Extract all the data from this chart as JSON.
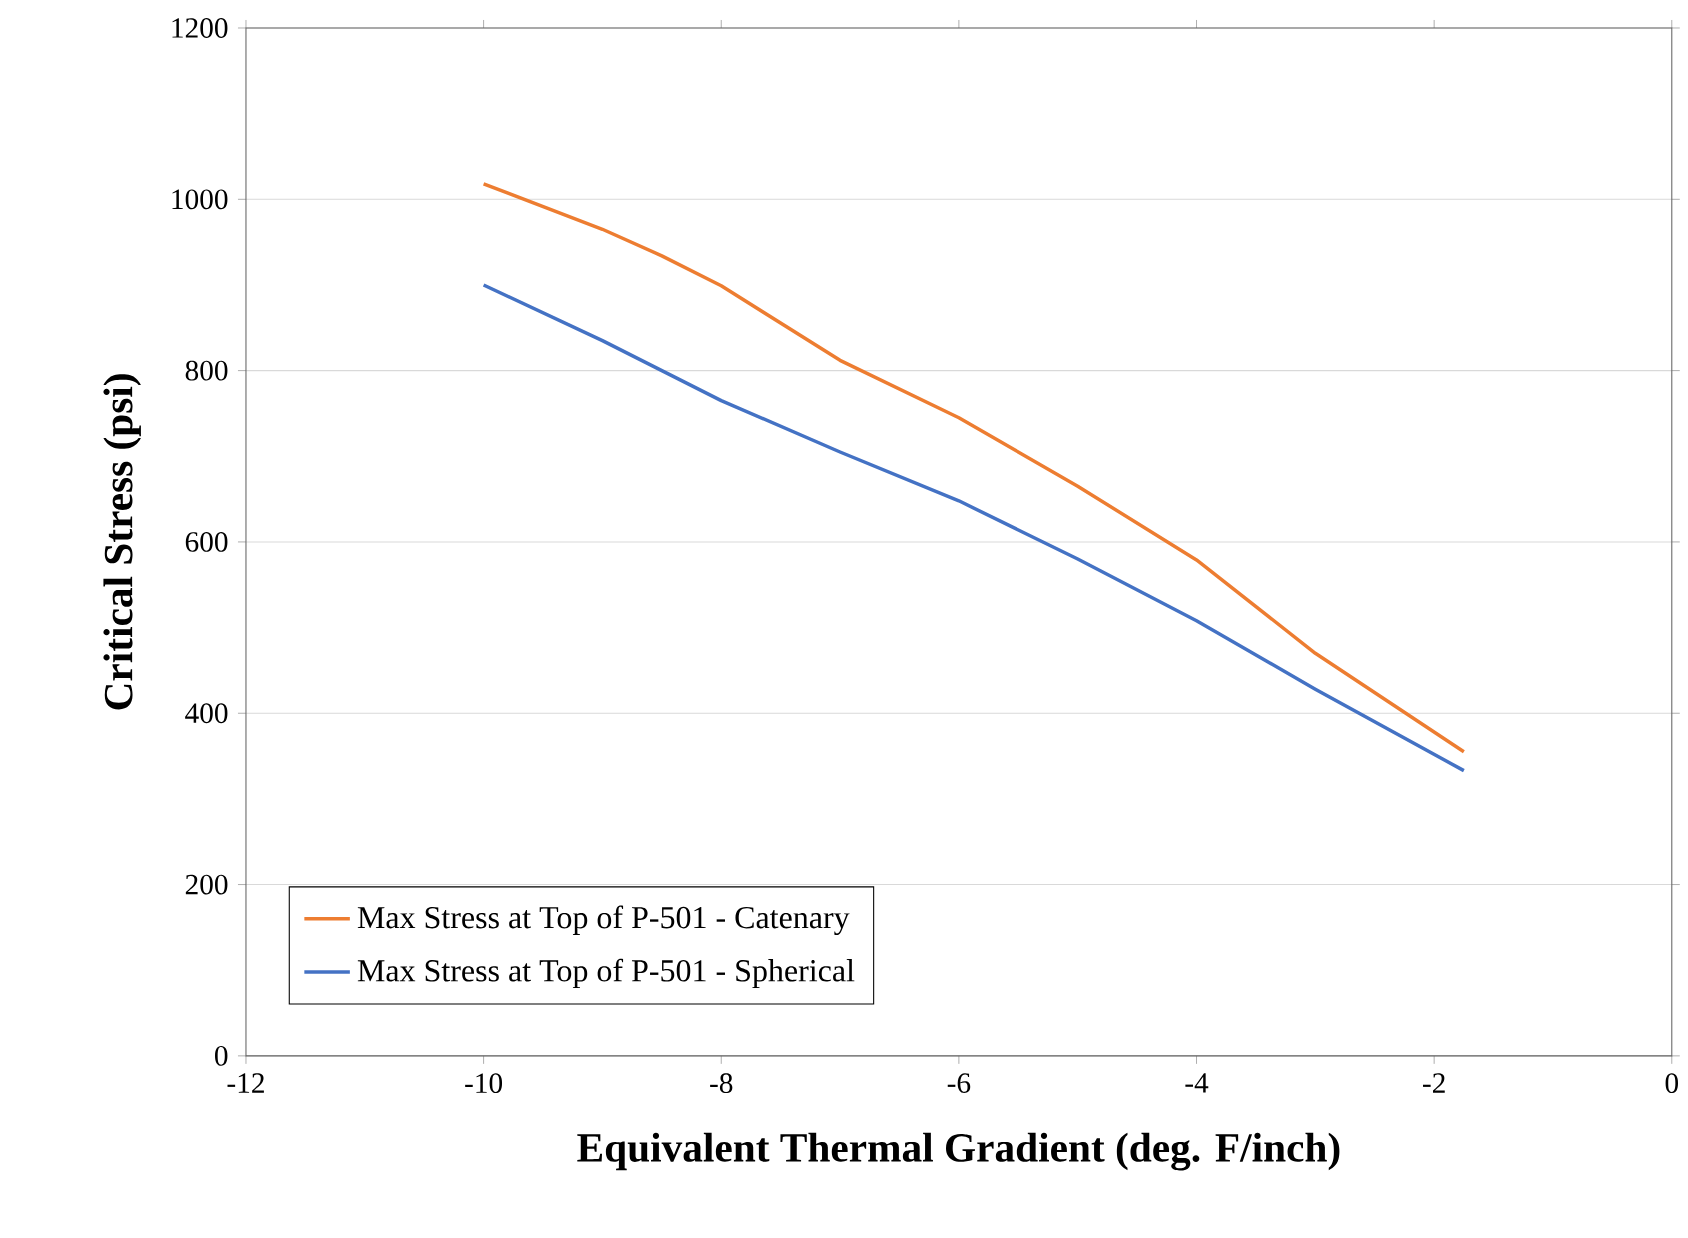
{
  "chart_data": {
    "type": "line",
    "xlabel": "Equivalent Thermal Gradient (deg. F/inch)",
    "ylabel": "Critical Stress (psi)",
    "xlim": [
      -12,
      0
    ],
    "xticks": [
      -12,
      -10,
      -8,
      -6,
      -4,
      -2,
      0
    ],
    "ylim": [
      0,
      1200
    ],
    "yticks": [
      0,
      200,
      400,
      600,
      800,
      1000,
      1200
    ],
    "grid": "y",
    "legend": "bottom left",
    "marker": "none",
    "line_style": "solid",
    "series": [
      {
        "name": "Max Stress at Top of P-501 - Catenary",
        "color": "#ed7d31",
        "x": [
          -10,
          -9,
          -8.5,
          -8,
          -7,
          -6,
          -5,
          -4,
          -3,
          -1.75
        ],
        "values": [
          1018,
          965,
          934,
          899,
          812,
          745,
          665,
          579,
          470,
          355
        ]
      },
      {
        "name": "Max Stress at Top of P-501 - Spherical",
        "color": "#4472c4",
        "x": [
          -10,
          -9,
          -8,
          -7,
          -6,
          -5,
          -4,
          -3,
          -1.75
        ],
        "values": [
          900,
          835,
          765,
          705,
          648,
          580,
          508,
          428,
          333
        ]
      }
    ]
  }
}
